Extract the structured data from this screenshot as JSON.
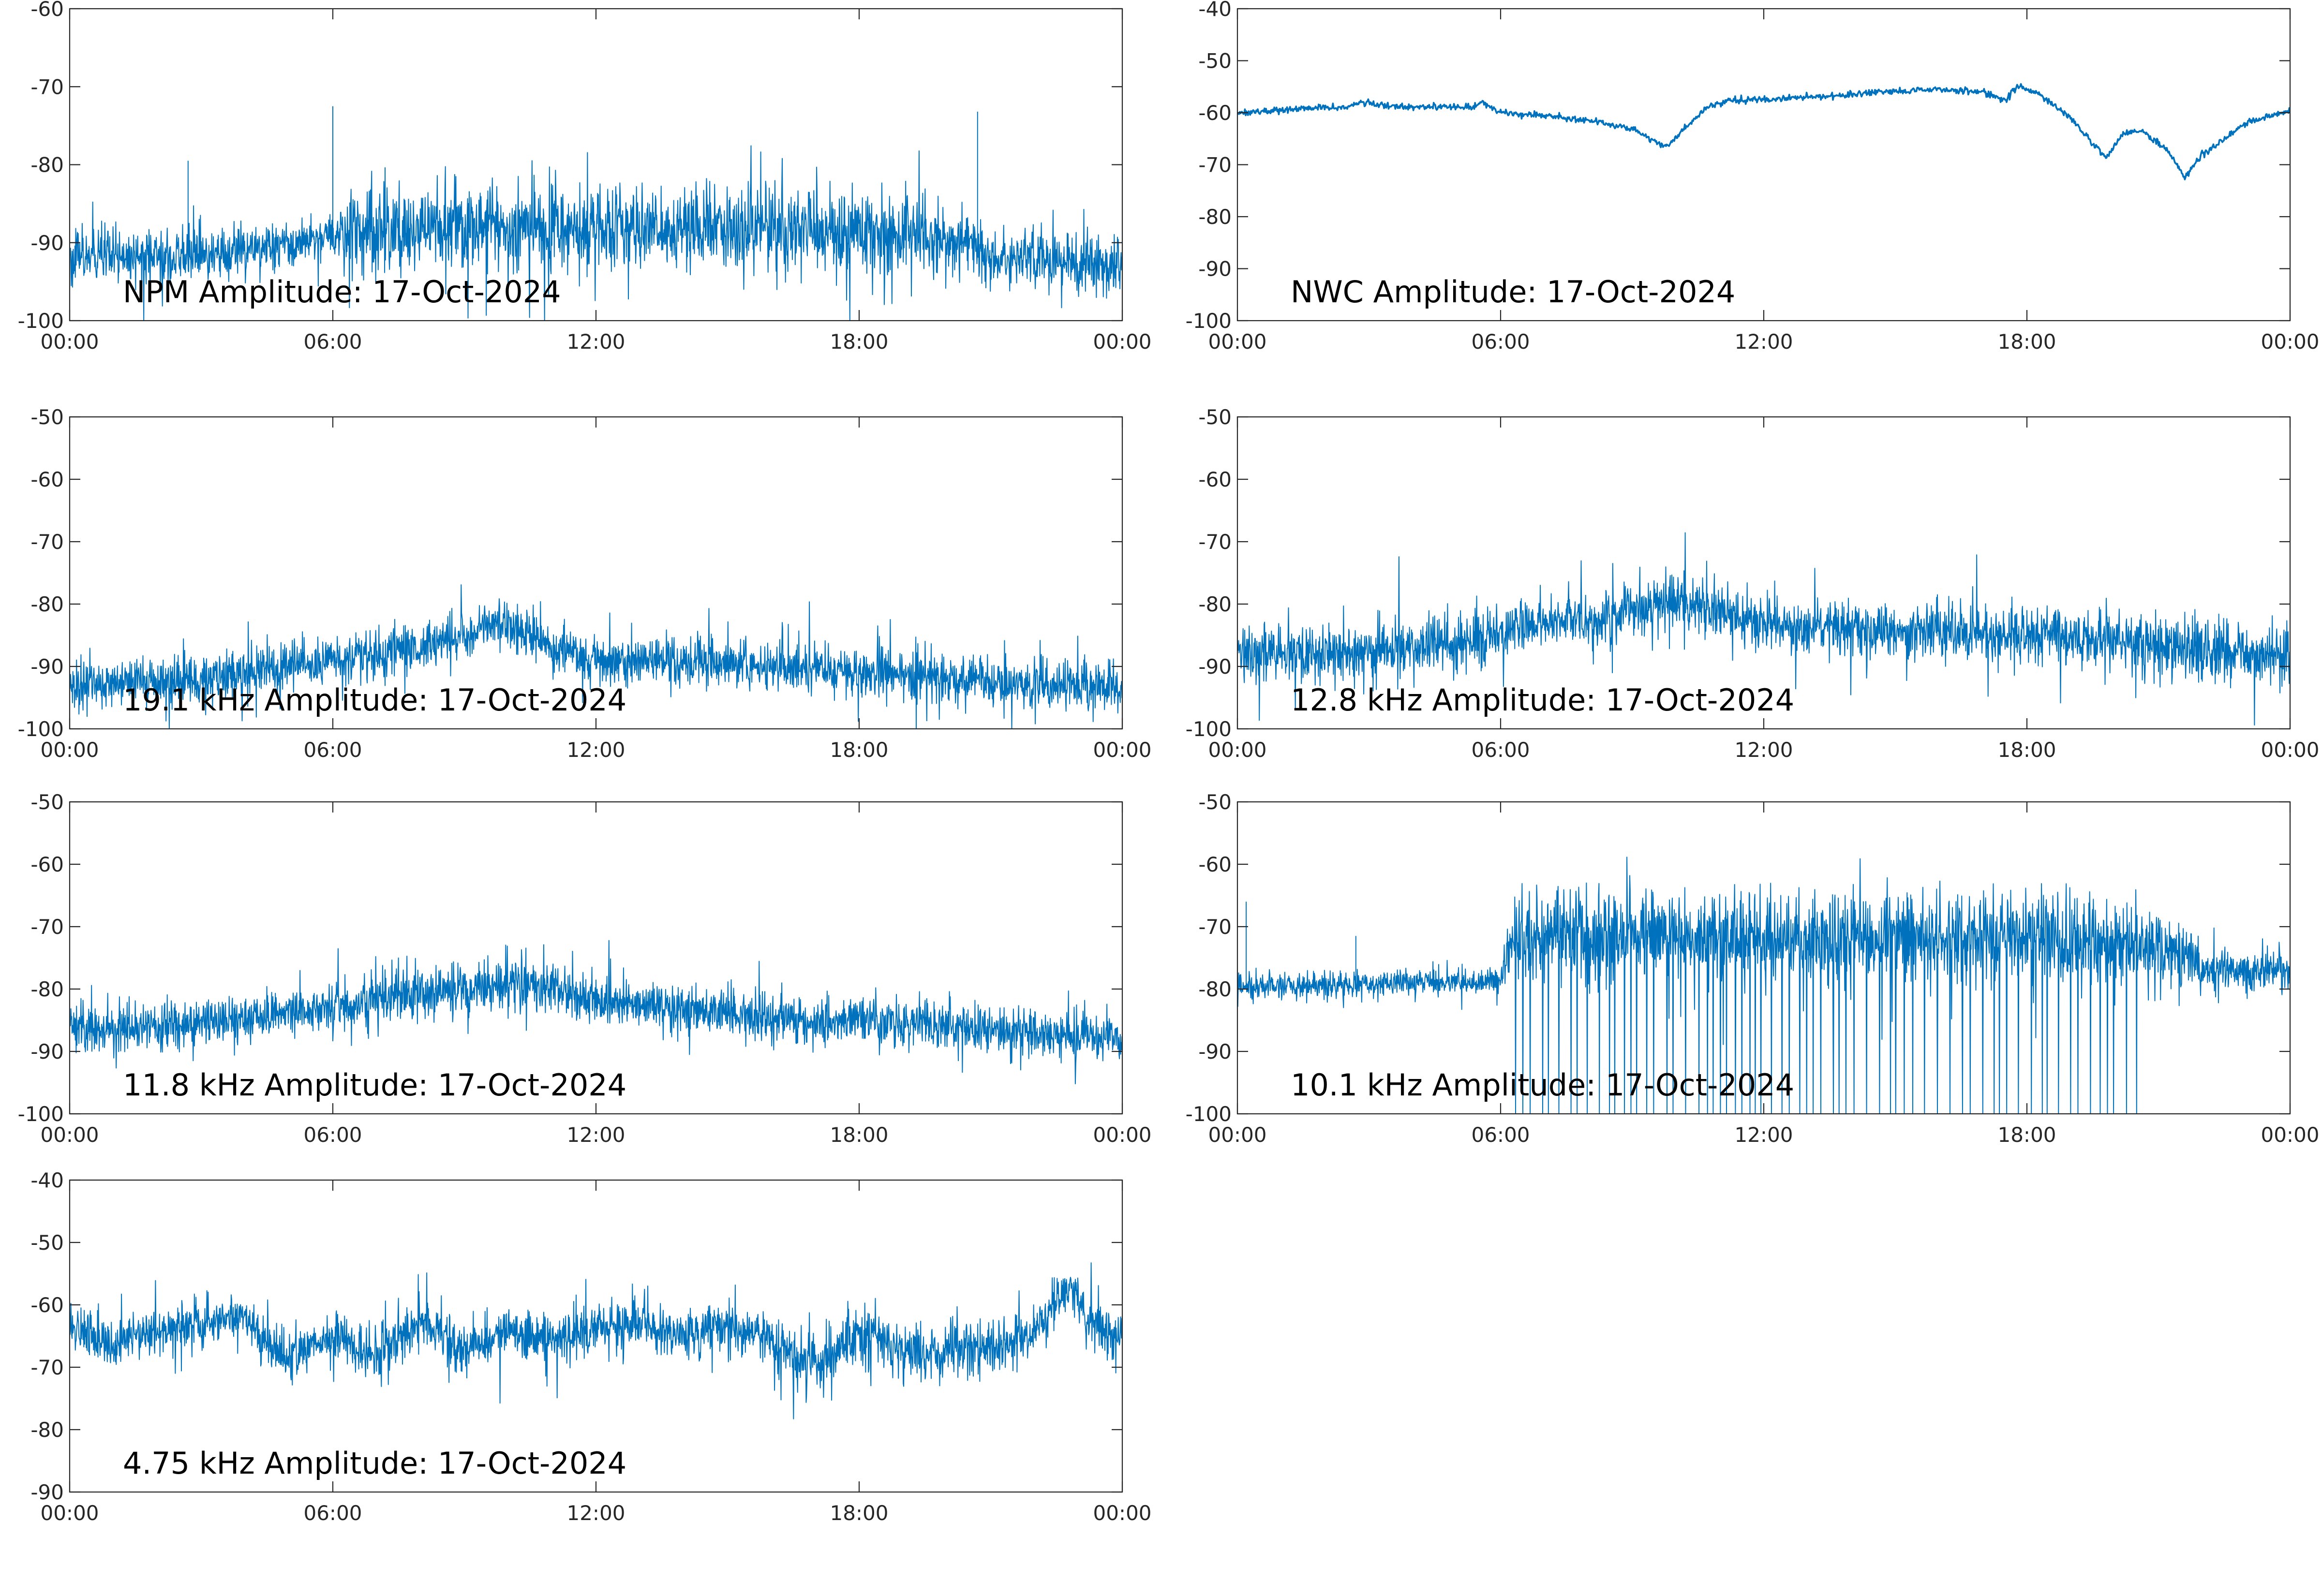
{
  "figure": {
    "date": "17-Oct-2024",
    "x_ticks": [
      "00:00",
      "06:00",
      "12:00",
      "18:00",
      "00:00"
    ],
    "line_color": "#0072BD"
  },
  "chart_data": [
    {
      "type": "line",
      "title": "NPM Amplitude: 17-Oct-2024",
      "xlabel": "",
      "ylabel": "",
      "xlim_hours": [
        0,
        24
      ],
      "ylim": [
        -100,
        -60
      ],
      "y_ticks": [
        -60,
        -70,
        -80,
        -90,
        -100
      ],
      "grid": false,
      "series": [
        {
          "style": "dense-noise",
          "x_hours": [
            0,
            2,
            4,
            5.5,
            6,
            6.5,
            9,
            12,
            15,
            18,
            20.5,
            21,
            22,
            24
          ],
          "y_mean": [
            -92,
            -92,
            -91,
            -90,
            -89,
            -88,
            -88,
            -88,
            -88,
            -88.5,
            -90,
            -92,
            -92,
            -93
          ],
          "y_spread": [
            3,
            3,
            2.5,
            2.5,
            3,
            5,
            5,
            5,
            5,
            5,
            4,
            3,
            3,
            3.5
          ],
          "spikes": [
            [
              2.7,
              -79.5
            ],
            [
              6.0,
              -72.5
            ],
            [
              20.7,
              -73.2
            ]
          ]
        }
      ]
    },
    {
      "type": "line",
      "title": "NWC Amplitude: 17-Oct-2024",
      "xlabel": "",
      "ylabel": "",
      "xlim_hours": [
        0,
        24
      ],
      "ylim": [
        -100,
        -40
      ],
      "y_ticks": [
        -40,
        -50,
        -60,
        -70,
        -80,
        -90,
        -100
      ],
      "grid": false,
      "series": [
        {
          "style": "smooth",
          "x_hours": [
            0,
            1,
            2,
            2.5,
            2.8,
            3.5,
            4.5,
            5.3,
            5.6,
            6,
            7,
            8,
            9,
            9.5,
            9.8,
            10.2,
            10.7,
            11.2,
            12,
            13,
            14,
            15,
            16,
            17,
            17.5,
            17.8,
            18.3,
            19,
            19.5,
            19.8,
            20.2,
            20.6,
            21.2,
            21.6,
            22,
            23,
            24
          ],
          "y": [
            -60,
            -59.5,
            -59,
            -59,
            -58,
            -58.8,
            -58.8,
            -59,
            -58,
            -60,
            -60.5,
            -61.5,
            -63,
            -65.5,
            -66.5,
            -63,
            -59,
            -57.5,
            -57.5,
            -57,
            -56.5,
            -56,
            -55.5,
            -56,
            -57.5,
            -55,
            -56.5,
            -61,
            -66,
            -68.5,
            -64,
            -63.5,
            -67,
            -72.5,
            -68,
            -62,
            -59.5
          ],
          "y_spread": 0.6
        }
      ]
    },
    {
      "type": "line",
      "title": "19.1 kHz Amplitude: 17-Oct-2024",
      "xlabel": "",
      "ylabel": "",
      "xlim_hours": [
        0,
        24
      ],
      "ylim": [
        -100,
        -50
      ],
      "y_ticks": [
        -50,
        -60,
        -70,
        -80,
        -90,
        -100
      ],
      "grid": false,
      "series": [
        {
          "style": "dense-noise",
          "x_hours": [
            0,
            2,
            4,
            6,
            7,
            8,
            9,
            9.8,
            10.5,
            11,
            12,
            14,
            16,
            18,
            20,
            22,
            24
          ],
          "y_mean": [
            -93,
            -93,
            -91,
            -89,
            -88,
            -87,
            -85,
            -83,
            -85,
            -87,
            -89,
            -89.5,
            -90,
            -91,
            -92,
            -93,
            -93.5
          ],
          "y_spread": [
            3.5,
            3.5,
            3.5,
            3.5,
            3.5,
            3.5,
            3.5,
            3,
            3.5,
            3.5,
            3.5,
            3.5,
            3.5,
            3.5,
            3.5,
            3.5,
            3.5
          ]
        }
      ]
    },
    {
      "type": "line",
      "title": "12.8 kHz Amplitude: 17-Oct-2024",
      "xlabel": "",
      "ylabel": "",
      "xlim_hours": [
        0,
        24
      ],
      "ylim": [
        -100,
        -50
      ],
      "y_ticks": [
        -50,
        -60,
        -70,
        -80,
        -90,
        -100
      ],
      "grid": false,
      "series": [
        {
          "style": "dense-noise",
          "x_hours": [
            0,
            2,
            4,
            6,
            7,
            8,
            9,
            9.7,
            10.5,
            12,
            14,
            16,
            18,
            20,
            22,
            24
          ],
          "y_mean": [
            -88,
            -88,
            -87,
            -85,
            -82,
            -83,
            -81,
            -79.5,
            -81,
            -83,
            -84,
            -84.5,
            -85,
            -86,
            -87.5,
            -88
          ],
          "y_spread": [
            4,
            4,
            4,
            4,
            4,
            4,
            4,
            4,
            4,
            4,
            4,
            4,
            4,
            4,
            4.5,
            4.5
          ]
        }
      ]
    },
    {
      "type": "line",
      "title": "11.8 kHz Amplitude: 17-Oct-2024",
      "xlabel": "",
      "ylabel": "",
      "xlim_hours": [
        0,
        24
      ],
      "ylim": [
        -100,
        -50
      ],
      "y_ticks": [
        -50,
        -60,
        -70,
        -80,
        -90,
        -100
      ],
      "grid": false,
      "series": [
        {
          "style": "dense-noise",
          "x_hours": [
            0,
            2,
            4,
            6,
            7,
            8,
            9,
            10,
            11,
            12,
            14,
            16,
            18,
            20,
            22,
            24
          ],
          "y_mean": [
            -86,
            -86,
            -85,
            -83,
            -81.5,
            -81,
            -80,
            -79,
            -80,
            -82,
            -83.5,
            -84.5,
            -85,
            -86,
            -87,
            -88
          ],
          "y_spread": [
            3.5,
            3.5,
            3.5,
            3.5,
            3.5,
            3.5,
            3.5,
            3.5,
            3.5,
            3.5,
            3.5,
            3.5,
            3.5,
            3.5,
            3.5,
            3.5
          ]
        }
      ]
    },
    {
      "type": "line",
      "title": "10.1 kHz Amplitude: 17-Oct-2024",
      "xlabel": "",
      "ylabel": "",
      "xlim_hours": [
        0,
        24
      ],
      "ylim": [
        -100,
        -50
      ],
      "y_ticks": [
        -50,
        -60,
        -70,
        -80,
        -90,
        -100
      ],
      "grid": false,
      "series": [
        {
          "style": "switching",
          "x_hours": [
            0,
            2,
            4,
            6,
            6.2,
            12,
            18,
            20,
            21.5,
            22,
            24
          ],
          "y_mean": [
            -79.5,
            -79.5,
            -79,
            -78.5,
            -72,
            -72,
            -72,
            -73,
            -74,
            -77,
            -77
          ],
          "y_spread": [
            2,
            2,
            2,
            2,
            6,
            6,
            6,
            6,
            5,
            3,
            3
          ],
          "switching_hours": [
            6.2,
            20.6
          ],
          "drop_to": -100,
          "spikes": [
            [
              0.2,
              -66
            ],
            [
              2.7,
              -71.5
            ]
          ]
        }
      ]
    },
    {
      "type": "line",
      "title": "4.75 kHz Amplitude: 17-Oct-2024",
      "xlabel": "",
      "ylabel": "",
      "xlim_hours": [
        0,
        24
      ],
      "ylim": [
        -90,
        -40
      ],
      "y_ticks": [
        -40,
        -50,
        -60,
        -70,
        -80,
        -90
      ],
      "grid": false,
      "series": [
        {
          "style": "dense-noise",
          "x_hours": [
            0,
            1,
            2,
            3,
            4,
            4.5,
            5,
            6,
            7,
            8,
            9,
            10,
            11,
            12,
            13,
            14,
            15,
            16,
            17,
            18,
            19,
            20,
            21,
            22,
            22.8,
            23.3,
            24
          ],
          "y_mean": [
            -64,
            -66,
            -64,
            -63,
            -62,
            -66,
            -69,
            -65,
            -68,
            -63,
            -67,
            -64,
            -66,
            -64,
            -63,
            -65,
            -63,
            -66,
            -70,
            -65,
            -67,
            -68,
            -67,
            -64,
            -57,
            -63,
            -65
          ],
          "y_spread": [
            3.5,
            3.5,
            3,
            3,
            3,
            4,
            4,
            3.5,
            4,
            3.5,
            4,
            3.5,
            4,
            3.5,
            3.5,
            3.5,
            3.5,
            4,
            4,
            4,
            4,
            4,
            4,
            4,
            3,
            4,
            4
          ]
        }
      ]
    }
  ]
}
